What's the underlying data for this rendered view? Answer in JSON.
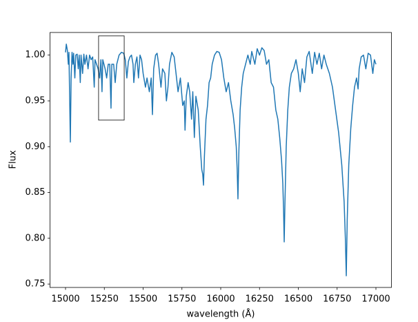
{
  "chart_data": {
    "type": "line",
    "xlabel": "wavelength (Å)",
    "ylabel": "Flux",
    "color": "#1f77b4",
    "xlim": [
      14900,
      17100
    ],
    "ylim": [
      0.7463,
      1.0247
    ],
    "xticks": [
      15000,
      15250,
      15500,
      15750,
      16000,
      16250,
      16500,
      16750,
      17000
    ],
    "yticks": [
      0.75,
      {
        "value": 0.8,
        "label": "0.80"
      },
      0.85,
      {
        "value": 0.9,
        "label": "0.90"
      },
      0.95,
      {
        "value": 1.0,
        "label": "1.00"
      }
    ],
    "grid": false,
    "highlight_box": {
      "x": [
        15213,
        15378
      ],
      "y": [
        0.929,
        1.021
      ]
    },
    "x": [
      15000,
      15005,
      15012,
      15018,
      15022,
      15026,
      15031,
      15036,
      15042,
      15048,
      15052,
      15060,
      15066,
      15075,
      15082,
      15088,
      15095,
      15100,
      15110,
      15118,
      15125,
      15135,
      15145,
      15155,
      15165,
      15175,
      15185,
      15190,
      15200,
      15210,
      15220,
      15228,
      15235,
      15240,
      15255,
      15265,
      15275,
      15285,
      15293,
      15298,
      15310,
      15320,
      15330,
      15345,
      15360,
      15375,
      15385,
      15395,
      15405,
      15415,
      15425,
      15435,
      15440,
      15450,
      15460,
      15470,
      15480,
      15490,
      15500,
      15515,
      15525,
      15540,
      15552,
      15560,
      15568,
      15580,
      15590,
      15600,
      15615,
      15625,
      15640,
      15650,
      15660,
      15670,
      15685,
      15700,
      15712,
      15725,
      15740,
      15755,
      15765,
      15770,
      15778,
      15790,
      15800,
      15812,
      15820,
      15830,
      15840,
      15855,
      15868,
      15878,
      15884,
      15889,
      15895,
      15905,
      15915,
      15925,
      15935,
      15945,
      15960,
      15975,
      15990,
      16005,
      16020,
      16035,
      16050,
      16065,
      16080,
      16090,
      16100,
      16106,
      16111,
      16117,
      16125,
      16135,
      16145,
      16160,
      16175,
      16190,
      16200,
      16220,
      16235,
      16250,
      16265,
      16280,
      16295,
      16310,
      16325,
      16340,
      16355,
      16368,
      16380,
      16392,
      16400,
      16405,
      16409,
      16414,
      16422,
      16432,
      16442,
      16455,
      16470,
      16485,
      16500,
      16512,
      16525,
      16540,
      16555,
      16570,
      16590,
      16605,
      16620,
      16635,
      16650,
      16665,
      16680,
      16700,
      16720,
      16740,
      16760,
      16780,
      16795,
      16803,
      16809,
      16815,
      16825,
      16838,
      16850,
      16862,
      16875,
      16885,
      16892,
      16905,
      16920,
      16935,
      16950,
      16965,
      16980,
      16990,
      17000
    ],
    "values": [
      1.003,
      1.012,
      1.005,
      0.99,
      1.003,
      0.96,
      0.905,
      0.975,
      1.003,
      0.99,
      1.002,
      0.975,
      1.0,
      1.001,
      0.985,
      1.0,
      0.97,
      1.0,
      0.98,
      1.001,
      0.99,
      1.0,
      0.985,
      1.0,
      0.995,
      0.998,
      0.965,
      0.995,
      0.99,
      0.985,
      0.975,
      0.995,
      0.96,
      0.995,
      0.985,
      0.975,
      0.99,
      0.99,
      0.942,
      0.99,
      0.99,
      0.97,
      0.99,
      1.0,
      1.003,
      1.002,
      0.995,
      0.975,
      0.993,
      0.998,
      1.0,
      0.99,
      0.97,
      0.99,
      0.998,
      0.975,
      1.0,
      0.995,
      0.98,
      0.965,
      0.975,
      0.96,
      0.975,
      0.935,
      0.985,
      1.0,
      1.002,
      0.99,
      0.965,
      0.985,
      0.98,
      0.95,
      0.965,
      0.99,
      1.003,
      0.998,
      0.98,
      0.96,
      0.975,
      0.945,
      0.95,
      0.918,
      0.955,
      0.97,
      0.96,
      0.93,
      0.96,
      0.91,
      0.955,
      0.94,
      0.9,
      0.875,
      0.87,
      0.858,
      0.89,
      0.93,
      0.945,
      0.97,
      0.975,
      0.99,
      1.0,
      1.004,
      1.003,
      0.995,
      0.975,
      0.96,
      0.97,
      0.95,
      0.935,
      0.92,
      0.9,
      0.875,
      0.843,
      0.895,
      0.94,
      0.965,
      0.98,
      0.99,
      1.0,
      0.99,
      1.004,
      0.99,
      1.007,
      1.0,
      1.008,
      1.005,
      0.99,
      0.995,
      0.97,
      0.965,
      0.94,
      0.93,
      0.91,
      0.885,
      0.86,
      0.83,
      0.796,
      0.84,
      0.9,
      0.94,
      0.965,
      0.98,
      0.985,
      0.995,
      0.98,
      0.96,
      0.985,
      0.97,
      0.998,
      1.004,
      0.98,
      1.003,
      0.99,
      1.002,
      0.985,
      1.0,
      0.99,
      0.98,
      0.965,
      0.94,
      0.915,
      0.88,
      0.84,
      0.8,
      0.759,
      0.82,
      0.88,
      0.92,
      0.945,
      0.965,
      0.975,
      0.963,
      0.985,
      0.998,
      1.0,
      0.985,
      1.002,
      1.0,
      0.98,
      0.995,
      0.99
    ]
  }
}
